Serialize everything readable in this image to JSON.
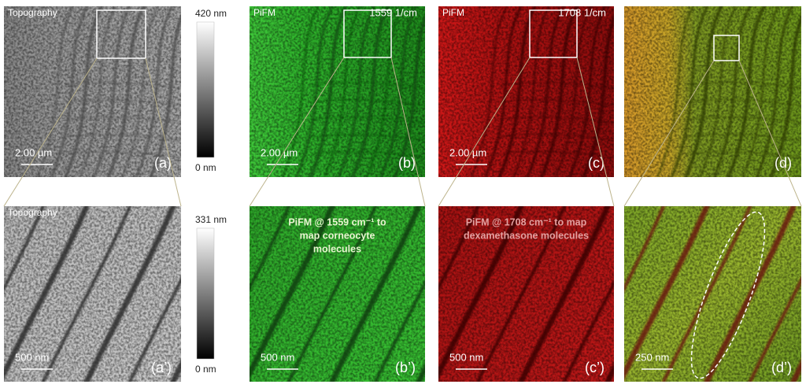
{
  "panels": [
    {
      "label": "(a)",
      "channel": "Topography",
      "scale_bar": "2.00 µm"
    },
    {
      "label": "(b)",
      "channel": "PiFM",
      "wavenumber": "1559 1/cm",
      "scale_bar": "2.00 µm"
    },
    {
      "label": "(c)",
      "channel": "PiFM",
      "wavenumber": "1708 1/cm",
      "scale_bar": "2.00 µm"
    },
    {
      "label": "(d)"
    },
    {
      "label": "(a’)",
      "channel": "Topography",
      "scale_bar": "500 nm"
    },
    {
      "label": "(b’)",
      "annotation": [
        "PiFM @ 1559 cm⁻¹ to",
        "map corneocyte",
        "molecules"
      ],
      "scale_bar": "500 nm"
    },
    {
      "label": "(c’)",
      "annotation": [
        "PiFM @ 1708 cm⁻¹ to map",
        "dexamethasone molecules"
      ],
      "scale_bar": "500 nm"
    },
    {
      "label": "(d’)",
      "scale_bar": "250 nm"
    }
  ],
  "colorbars": [
    {
      "max": "420 nm",
      "min": "0 nm"
    },
    {
      "max": "331 nm",
      "min": "0 nm"
    }
  ]
}
